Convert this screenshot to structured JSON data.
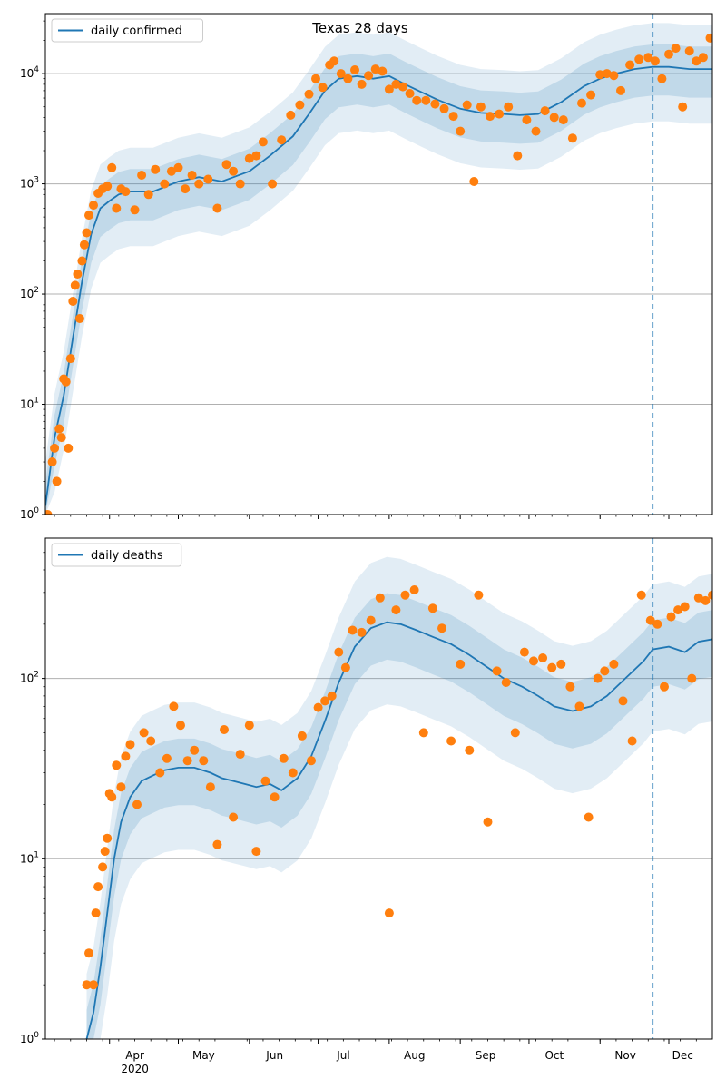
{
  "chart_data": [
    {
      "type": "line",
      "title": "Texas 28 days",
      "yscale": "log",
      "ylim": [
        1,
        35000
      ],
      "xlim": [
        "2020-03-04",
        "2020-12-20"
      ],
      "grid": "y-major",
      "legend": "top-left",
      "forecast_start": "2020-11-24",
      "y_ticks": [
        1,
        10,
        100,
        1000,
        10000
      ],
      "y_tick_labels": [
        "10^0",
        "10^1",
        "10^2",
        "10^3",
        "10^4"
      ],
      "x_month_labels": [],
      "series": [
        {
          "name": "daily confirmed",
          "kind": "model",
          "color": "#1f77b4",
          "x": [
            "2020-03-04",
            "2020-03-08",
            "2020-03-12",
            "2020-03-16",
            "2020-03-20",
            "2020-03-24",
            "2020-03-28",
            "2020-04-01",
            "2020-04-05",
            "2020-04-10",
            "2020-04-20",
            "2020-05-01",
            "2020-05-10",
            "2020-05-20",
            "2020-06-01",
            "2020-06-10",
            "2020-06-20",
            "2020-06-27",
            "2020-07-04",
            "2020-07-10",
            "2020-07-18",
            "2020-07-25",
            "2020-08-01",
            "2020-08-08",
            "2020-08-15",
            "2020-08-22",
            "2020-09-01",
            "2020-09-10",
            "2020-09-20",
            "2020-09-27",
            "2020-10-05",
            "2020-10-15",
            "2020-10-25",
            "2020-11-01",
            "2020-11-08",
            "2020-11-16",
            "2020-11-24",
            "2020-12-01",
            "2020-12-10",
            "2020-12-20"
          ],
          "values": [
            1.2,
            5,
            12,
            40,
            130,
            350,
            600,
            700,
            800,
            850,
            850,
            1050,
            1150,
            1050,
            1300,
            1800,
            2700,
            4300,
            7000,
            9000,
            9500,
            9000,
            9500,
            8000,
            6800,
            5800,
            4800,
            4400,
            4300,
            4200,
            4300,
            5500,
            7700,
            9000,
            10000,
            11000,
            11500,
            11500,
            11000,
            11000
          ],
          "band_outer_upper_factor": 2.5,
          "band_outer_lower_factor": 0.32,
          "band_inner_upper_factor": 1.6,
          "band_inner_lower_factor": 0.55
        },
        {
          "name": "",
          "kind": "observed",
          "color": "#ff7f0e",
          "x": [
            "2020-03-05",
            "2020-03-07",
            "2020-03-08",
            "2020-03-09",
            "2020-03-10",
            "2020-03-11",
            "2020-03-12",
            "2020-03-13",
            "2020-03-14",
            "2020-03-15",
            "2020-03-16",
            "2020-03-17",
            "2020-03-18",
            "2020-03-19",
            "2020-03-20",
            "2020-03-21",
            "2020-03-22",
            "2020-03-23",
            "2020-03-25",
            "2020-03-27",
            "2020-03-29",
            "2020-03-31",
            "2020-04-02",
            "2020-04-04",
            "2020-04-06",
            "2020-04-08",
            "2020-04-12",
            "2020-04-15",
            "2020-04-18",
            "2020-04-21",
            "2020-04-25",
            "2020-04-28",
            "2020-05-01",
            "2020-05-04",
            "2020-05-07",
            "2020-05-10",
            "2020-05-14",
            "2020-05-18",
            "2020-05-22",
            "2020-05-25",
            "2020-05-28",
            "2020-06-01",
            "2020-06-04",
            "2020-06-07",
            "2020-06-11",
            "2020-06-15",
            "2020-06-19",
            "2020-06-23",
            "2020-06-27",
            "2020-06-30",
            "2020-07-03",
            "2020-07-06",
            "2020-07-08",
            "2020-07-11",
            "2020-07-14",
            "2020-07-17",
            "2020-07-20",
            "2020-07-23",
            "2020-07-26",
            "2020-07-29",
            "2020-08-01",
            "2020-08-04",
            "2020-08-07",
            "2020-08-10",
            "2020-08-13",
            "2020-08-17",
            "2020-08-21",
            "2020-08-25",
            "2020-08-29",
            "2020-09-01",
            "2020-09-04",
            "2020-09-07",
            "2020-09-10",
            "2020-09-14",
            "2020-09-18",
            "2020-09-22",
            "2020-09-26",
            "2020-09-30",
            "2020-10-04",
            "2020-10-08",
            "2020-10-12",
            "2020-10-16",
            "2020-10-20",
            "2020-10-24",
            "2020-10-28",
            "2020-11-01",
            "2020-11-04",
            "2020-11-07",
            "2020-11-10",
            "2020-11-14",
            "2020-11-18",
            "2020-11-22",
            "2020-11-25",
            "2020-11-28",
            "2020-12-01",
            "2020-12-04",
            "2020-12-07",
            "2020-12-10",
            "2020-12-13",
            "2020-12-16",
            "2020-12-19"
          ],
          "values": [
            1,
            3,
            4,
            2,
            6,
            5,
            17,
            16,
            4,
            26,
            86,
            120,
            152,
            60,
            200,
            280,
            360,
            520,
            640,
            820,
            900,
            950,
            1400,
            600,
            900,
            850,
            580,
            1200,
            800,
            1350,
            1000,
            1300,
            1400,
            900,
            1200,
            1000,
            1100,
            600,
            1500,
            1300,
            1000,
            1700,
            1800,
            2400,
            1000,
            2500,
            4200,
            5200,
            6500,
            9000,
            7500,
            12000,
            13000,
            10000,
            9000,
            10800,
            8000,
            9600,
            11000,
            10500,
            7200,
            8000,
            7600,
            6600,
            5700,
            5700,
            5300,
            4800,
            4100,
            3000,
            5200,
            1050,
            5000,
            4100,
            4300,
            5000,
            1800,
            3800,
            3000,
            4600,
            4000,
            3800,
            2600,
            5400,
            6400,
            9800,
            10000,
            9600,
            7000,
            12000,
            13500,
            14000,
            13000,
            9000,
            15000,
            17000,
            5000,
            16000,
            13000,
            14000,
            21000
          ]
        }
      ]
    },
    {
      "type": "line",
      "title": "",
      "yscale": "log",
      "ylim": [
        1,
        600
      ],
      "xlim": [
        "2020-03-04",
        "2020-12-20"
      ],
      "grid": "y-major",
      "legend": "top-left",
      "forecast_start": "2020-11-24",
      "y_ticks": [
        1,
        10,
        100
      ],
      "y_tick_labels": [
        "10^0",
        "10^1",
        "10^2"
      ],
      "x_month_labels": [
        "Apr",
        "May",
        "Jun",
        "Jul",
        "Aug",
        "Sep",
        "Oct",
        "Nov",
        "Dec"
      ],
      "x_year_label": "2020",
      "series": [
        {
          "name": "daily deaths",
          "kind": "model",
          "color": "#1f77b4",
          "x": [
            "2020-03-22",
            "2020-03-25",
            "2020-03-28",
            "2020-03-31",
            "2020-04-03",
            "2020-04-06",
            "2020-04-10",
            "2020-04-15",
            "2020-04-20",
            "2020-04-25",
            "2020-05-01",
            "2020-05-08",
            "2020-05-15",
            "2020-05-20",
            "2020-05-25",
            "2020-05-30",
            "2020-06-04",
            "2020-06-10",
            "2020-06-15",
            "2020-06-22",
            "2020-06-28",
            "2020-07-04",
            "2020-07-10",
            "2020-07-17",
            "2020-07-24",
            "2020-07-31",
            "2020-08-06",
            "2020-08-13",
            "2020-08-20",
            "2020-08-28",
            "2020-09-05",
            "2020-09-13",
            "2020-09-20",
            "2020-09-28",
            "2020-10-05",
            "2020-10-12",
            "2020-10-20",
            "2020-10-28",
            "2020-11-04",
            "2020-11-12",
            "2020-11-20",
            "2020-11-24",
            "2020-12-01",
            "2020-12-08",
            "2020-12-14",
            "2020-12-20"
          ],
          "values": [
            1,
            1.4,
            2.5,
            5,
            10,
            16,
            22,
            27,
            29,
            31,
            32,
            32,
            30,
            28,
            27,
            26,
            25,
            26,
            24,
            28,
            37,
            58,
            95,
            150,
            190,
            205,
            200,
            185,
            170,
            155,
            135,
            115,
            100,
            90,
            80,
            70,
            66,
            70,
            80,
            100,
            125,
            145,
            150,
            140,
            160,
            165
          ],
          "band_outer_upper_factor": 2.3,
          "band_outer_lower_factor": 0.35,
          "band_inner_upper_factor": 1.45,
          "band_inner_lower_factor": 0.62
        },
        {
          "name": "",
          "kind": "observed",
          "color": "#ff7f0e",
          "x": [
            "2020-03-22",
            "2020-03-23",
            "2020-03-25",
            "2020-03-26",
            "2020-03-27",
            "2020-03-29",
            "2020-03-30",
            "2020-03-31",
            "2020-04-01",
            "2020-04-02",
            "2020-04-04",
            "2020-04-06",
            "2020-04-08",
            "2020-04-10",
            "2020-04-13",
            "2020-04-16",
            "2020-04-19",
            "2020-04-23",
            "2020-04-26",
            "2020-04-29",
            "2020-05-02",
            "2020-05-05",
            "2020-05-08",
            "2020-05-12",
            "2020-05-15",
            "2020-05-18",
            "2020-05-21",
            "2020-05-25",
            "2020-05-28",
            "2020-06-01",
            "2020-06-04",
            "2020-06-08",
            "2020-06-12",
            "2020-06-16",
            "2020-06-20",
            "2020-06-24",
            "2020-06-28",
            "2020-07-01",
            "2020-07-04",
            "2020-07-07",
            "2020-07-10",
            "2020-07-13",
            "2020-07-16",
            "2020-07-20",
            "2020-07-24",
            "2020-07-28",
            "2020-08-01",
            "2020-08-04",
            "2020-08-08",
            "2020-08-12",
            "2020-08-16",
            "2020-08-20",
            "2020-08-24",
            "2020-08-28",
            "2020-09-01",
            "2020-09-05",
            "2020-09-09",
            "2020-09-13",
            "2020-09-17",
            "2020-09-21",
            "2020-09-25",
            "2020-09-29",
            "2020-10-03",
            "2020-10-07",
            "2020-10-11",
            "2020-10-15",
            "2020-10-19",
            "2020-10-23",
            "2020-10-27",
            "2020-10-31",
            "2020-11-03",
            "2020-11-07",
            "2020-11-11",
            "2020-11-15",
            "2020-11-19",
            "2020-11-23",
            "2020-11-26",
            "2020-11-29",
            "2020-12-02",
            "2020-12-05",
            "2020-12-08",
            "2020-12-11",
            "2020-12-14",
            "2020-12-17",
            "2020-12-20"
          ],
          "values": [
            2,
            3,
            2,
            5,
            7,
            9,
            11,
            13,
            23,
            22,
            33,
            25,
            37,
            43,
            20,
            50,
            45,
            30,
            36,
            70,
            55,
            35,
            40,
            35,
            25,
            12,
            52,
            17,
            38,
            55,
            11,
            27,
            22,
            36,
            30,
            48,
            35,
            69,
            75,
            80,
            140,
            115,
            185,
            180,
            210,
            280,
            5,
            240,
            290,
            310,
            50,
            245,
            190,
            45,
            120,
            40,
            290,
            16,
            110,
            95,
            50,
            140,
            125,
            130,
            115,
            120,
            90,
            70,
            17,
            100,
            110,
            120,
            75,
            45,
            290,
            210,
            200,
            90,
            220,
            240,
            250,
            100,
            280,
            270,
            290
          ]
        }
      ]
    }
  ]
}
